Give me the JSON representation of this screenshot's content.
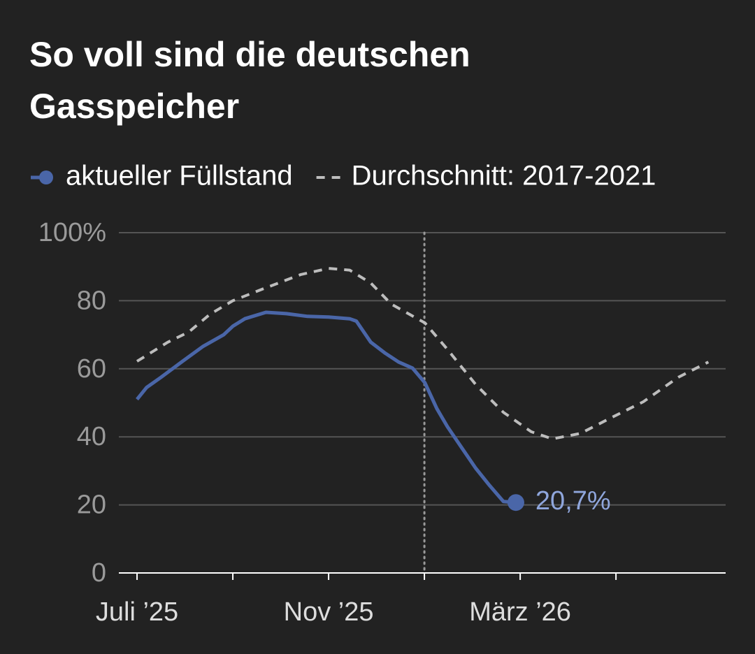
{
  "chart_data": {
    "type": "line",
    "title": [
      "So voll sind die deutschen",
      "Gasspeicher"
    ],
    "series": [
      {
        "name": "aktueller Füllstand",
        "color": "#4a66a8",
        "style": "solid",
        "end_marker": true,
        "label_color": "#8fa6dc",
        "x": [
          0,
          0.2,
          0.5,
          0.93,
          1.37,
          1.81,
          2,
          2.25,
          2.69,
          3.12,
          3.56,
          4,
          4.44,
          4.58,
          4.88,
          5.17,
          5.46,
          5.75,
          6.01,
          6.26,
          6.48,
          6.77,
          7.07,
          7.36,
          7.65,
          7.91
        ],
        "values": [
          51,
          54.5,
          57.5,
          62,
          66.5,
          70,
          72.5,
          74.7,
          76.6,
          76.2,
          75.4,
          75.2,
          74.7,
          74,
          67.8,
          64.7,
          62,
          60.2,
          55.9,
          48.3,
          43,
          37,
          30.8,
          25.7,
          21,
          20.7
        ],
        "value_labels": [
          null,
          null,
          null,
          null,
          null,
          null,
          null,
          null,
          null,
          null,
          null,
          null,
          null,
          null,
          null,
          null,
          null,
          null,
          null,
          null,
          null,
          null,
          null,
          null,
          null,
          "20,7%"
        ]
      },
      {
        "name": "Durchschnitt: 2017-2021",
        "color": "#bdbdbd",
        "style": "dashed",
        "x": [
          0,
          0.64,
          1.08,
          1.52,
          2,
          2.69,
          3.42,
          4,
          4.44,
          4.88,
          5.31,
          6.01,
          6.48,
          7.07,
          7.65,
          8.23,
          8.67,
          9.26,
          9.84,
          10.57,
          11.3,
          11.93
        ],
        "values": [
          62.2,
          67.8,
          70.8,
          76,
          80,
          83.8,
          87.7,
          89.5,
          89,
          85.2,
          79,
          73.5,
          65.7,
          55.4,
          47.2,
          41.5,
          39.4,
          41,
          45.2,
          50.3,
          57.5,
          62
        ]
      }
    ],
    "xlim": [
      -0.38,
      12.29
    ],
    "xticks": [
      {
        "value": 0,
        "label": "Juli ’25"
      },
      {
        "value": 2,
        "label": null
      },
      {
        "value": 4,
        "label": "Nov ’25"
      },
      {
        "value": 6,
        "label": null
      },
      {
        "value": 8,
        "label": "März ’26"
      },
      {
        "value": 10,
        "label": null
      }
    ],
    "ylim": [
      0,
      100
    ],
    "yticks": [
      0,
      20,
      40,
      60,
      80,
      {
        "value": 100,
        "label": "100%"
      }
    ],
    "grid": true,
    "marker_x": 6,
    "legend": "top"
  }
}
